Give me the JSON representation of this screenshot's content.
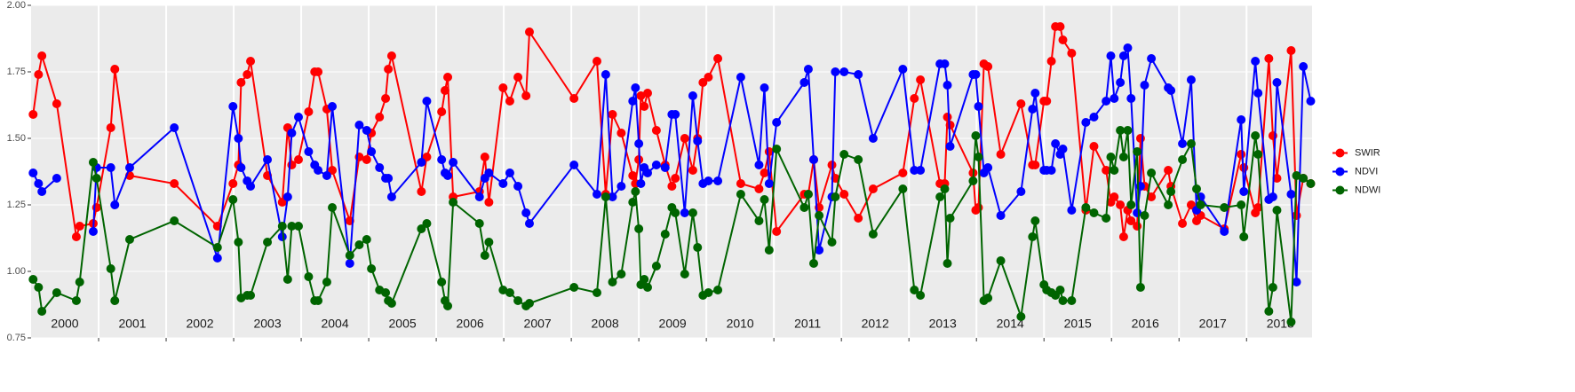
{
  "chart_data": {
    "type": "line",
    "x": [
      2000.03,
      2000.11,
      2000.16,
      2000.38,
      2000.67,
      2000.72,
      2000.92,
      2000.97,
      2001.18,
      2001.24,
      2001.46,
      2002.12,
      2002.76,
      2002.99,
      2003.07,
      2003.11,
      2003.2,
      2003.25,
      2003.5,
      2003.72,
      2003.8,
      2003.86,
      2003.96,
      2004.11,
      2004.2,
      2004.25,
      2004.38,
      2004.46,
      2004.72,
      2004.86,
      2004.97,
      2005.04,
      2005.16,
      2005.25,
      2005.29,
      2005.34,
      2005.78,
      2005.86,
      2006.08,
      2006.13,
      2006.17,
      2006.25,
      2006.64,
      2006.72,
      2006.78,
      2006.99,
      2007.09,
      2007.21,
      2007.33,
      2007.38,
      2008.04,
      2008.38,
      2008.51,
      2008.61,
      2008.74,
      2008.91,
      2008.95,
      2009.0,
      2009.03,
      2009.08,
      2009.13,
      2009.26,
      2009.39,
      2009.49,
      2009.54,
      2009.68,
      2009.8,
      2009.87,
      2009.95,
      2010.03,
      2010.17,
      2010.51,
      2010.78,
      2010.86,
      2010.93,
      2011.04,
      2011.45,
      2011.51,
      2011.59,
      2011.67,
      2011.86,
      2011.91,
      2012.04,
      2012.25,
      2012.47,
      2012.91,
      2013.08,
      2013.17,
      2013.46,
      2013.53,
      2013.57,
      2013.61,
      2013.95,
      2013.99,
      2014.03,
      2014.11,
      2014.17,
      2014.36,
      2014.66,
      2014.83,
      2014.87,
      2015.0,
      2015.04,
      2015.11,
      2015.17,
      2015.24,
      2015.28,
      2015.41,
      2015.62,
      2015.74,
      2015.92,
      2015.99,
      2016.04,
      2016.13,
      2016.18,
      2016.24,
      2016.29,
      2016.38,
      2016.43,
      2016.49,
      2016.59,
      2016.84,
      2016.88,
      2017.05,
      2017.18,
      2017.26,
      2017.32,
      2017.67,
      2017.92,
      2017.96,
      2018.13,
      2018.17,
      2018.33,
      2018.39,
      2018.45,
      2018.66,
      2018.74,
      2018.84,
      2018.95
    ],
    "series": [
      {
        "name": "SWIR",
        "color": "#ff0000",
        "values": [
          1.59,
          1.74,
          1.81,
          1.63,
          1.13,
          1.17,
          1.18,
          1.24,
          1.54,
          1.76,
          1.36,
          1.33,
          1.17,
          1.33,
          1.4,
          1.71,
          1.74,
          1.79,
          1.36,
          1.26,
          1.54,
          1.4,
          1.42,
          1.6,
          1.75,
          1.75,
          1.61,
          1.38,
          1.19,
          1.43,
          1.42,
          1.52,
          1.58,
          1.65,
          1.76,
          1.81,
          1.3,
          1.43,
          1.6,
          1.68,
          1.73,
          1.28,
          1.3,
          1.43,
          1.26,
          1.69,
          1.64,
          1.73,
          1.66,
          1.9,
          1.65,
          1.79,
          1.29,
          1.59,
          1.52,
          1.36,
          1.33,
          1.42,
          1.66,
          1.62,
          1.67,
          1.53,
          1.4,
          1.32,
          1.35,
          1.5,
          1.38,
          1.5,
          1.71,
          1.73,
          1.8,
          1.33,
          1.31,
          1.37,
          1.45,
          1.15,
          1.29,
          1.29,
          1.42,
          1.24,
          1.4,
          1.35,
          1.29,
          1.2,
          1.31,
          1.37,
          1.65,
          1.72,
          1.33,
          1.33,
          1.58,
          1.55,
          1.37,
          1.23,
          1.24,
          1.78,
          1.77,
          1.44,
          1.63,
          1.4,
          1.4,
          1.64,
          1.64,
          1.79,
          1.92,
          1.92,
          1.87,
          1.82,
          1.23,
          1.47,
          1.38,
          1.26,
          1.28,
          1.25,
          1.13,
          1.23,
          1.19,
          1.17,
          1.5,
          1.32,
          1.28,
          1.38,
          1.32,
          1.18,
          1.25,
          1.19,
          1.21,
          1.16,
          1.44,
          1.39,
          1.22,
          1.24,
          1.8,
          1.51,
          1.35,
          1.83,
          1.21,
          1.35,
          1.33
        ]
      },
      {
        "name": "NDVI",
        "color": "#0000ff",
        "values": [
          1.37,
          1.33,
          1.3,
          1.35,
          null,
          null,
          1.15,
          1.39,
          1.39,
          1.25,
          1.39,
          1.54,
          1.05,
          1.62,
          1.5,
          1.39,
          1.34,
          1.32,
          1.42,
          1.13,
          1.28,
          1.52,
          1.58,
          1.45,
          1.4,
          1.38,
          1.36,
          1.62,
          1.03,
          1.55,
          1.53,
          1.45,
          1.39,
          1.35,
          1.35,
          1.28,
          1.41,
          1.64,
          1.42,
          1.37,
          1.36,
          1.41,
          1.28,
          1.35,
          1.37,
          1.33,
          1.37,
          1.32,
          1.22,
          1.18,
          1.4,
          1.29,
          1.74,
          1.28,
          1.32,
          1.64,
          1.69,
          1.48,
          1.33,
          1.39,
          1.37,
          1.4,
          1.39,
          1.59,
          1.59,
          1.22,
          1.66,
          1.49,
          1.33,
          1.34,
          1.34,
          1.73,
          1.4,
          1.69,
          1.33,
          1.56,
          1.71,
          1.76,
          1.42,
          1.08,
          1.28,
          1.75,
          1.75,
          1.74,
          1.5,
          1.76,
          1.38,
          1.38,
          1.78,
          1.78,
          1.7,
          1.47,
          1.74,
          1.74,
          1.62,
          1.37,
          1.39,
          1.21,
          1.3,
          1.61,
          1.67,
          1.38,
          1.38,
          1.38,
          1.48,
          1.44,
          1.46,
          1.23,
          1.56,
          1.58,
          1.64,
          1.81,
          1.65,
          1.71,
          1.81,
          1.84,
          1.65,
          1.22,
          1.32,
          1.7,
          1.8,
          1.69,
          1.68,
          1.48,
          1.72,
          1.23,
          1.28,
          1.15,
          1.57,
          1.3,
          1.79,
          1.67,
          1.27,
          1.28,
          1.71,
          1.29,
          0.96,
          1.77,
          1.64
        ]
      },
      {
        "name": "NDWI",
        "color": "#006400",
        "values": [
          0.97,
          0.94,
          0.85,
          0.92,
          0.89,
          0.96,
          1.41,
          1.35,
          1.01,
          0.89,
          1.12,
          1.19,
          1.09,
          1.27,
          1.11,
          0.9,
          0.91,
          0.91,
          1.11,
          1.17,
          0.97,
          1.17,
          1.17,
          0.98,
          0.89,
          0.89,
          0.96,
          1.24,
          1.06,
          1.1,
          1.12,
          1.01,
          0.93,
          0.92,
          0.89,
          0.88,
          1.16,
          1.18,
          0.96,
          0.89,
          0.87,
          1.26,
          1.18,
          1.06,
          1.11,
          0.93,
          0.92,
          0.89,
          0.87,
          0.88,
          0.94,
          0.92,
          1.28,
          0.96,
          0.99,
          1.26,
          1.3,
          1.16,
          0.95,
          0.97,
          0.94,
          1.02,
          1.14,
          1.24,
          1.22,
          0.99,
          1.22,
          1.09,
          0.91,
          0.92,
          0.93,
          1.29,
          1.19,
          1.27,
          1.08,
          1.46,
          1.24,
          1.29,
          1.03,
          1.21,
          1.11,
          1.28,
          1.44,
          1.42,
          1.14,
          1.31,
          0.93,
          0.91,
          1.28,
          1.31,
          1.03,
          1.2,
          1.34,
          1.51,
          1.43,
          0.89,
          0.9,
          1.04,
          0.83,
          1.13,
          1.19,
          0.95,
          0.93,
          0.92,
          0.91,
          0.93,
          0.89,
          0.89,
          1.24,
          1.22,
          1.2,
          1.43,
          1.38,
          1.53,
          1.43,
          1.53,
          1.25,
          1.45,
          0.94,
          1.21,
          1.37,
          1.25,
          1.3,
          1.42,
          1.48,
          1.31,
          1.25,
          1.24,
          1.25,
          1.13,
          1.51,
          1.44,
          0.85,
          0.94,
          1.23,
          0.81,
          1.36,
          1.35,
          1.33
        ]
      }
    ],
    "xlim": [
      2000,
      2018.97
    ],
    "year_boundaries": [
      2001,
      2002,
      2003,
      2004,
      2005,
      2006,
      2007,
      2008,
      2009,
      2010,
      2011,
      2012,
      2013,
      2014,
      2015,
      2016,
      2017,
      2018
    ],
    "year_labels": [
      {
        "value": 2000.5,
        "label": "2000"
      },
      {
        "value": 2001.5,
        "label": "2001"
      },
      {
        "value": 2002.5,
        "label": "2002"
      },
      {
        "value": 2003.5,
        "label": "2003"
      },
      {
        "value": 2004.5,
        "label": "2004"
      },
      {
        "value": 2005.5,
        "label": "2005"
      },
      {
        "value": 2006.5,
        "label": "2006"
      },
      {
        "value": 2007.5,
        "label": "2007"
      },
      {
        "value": 2008.5,
        "label": "2008"
      },
      {
        "value": 2009.5,
        "label": "2009"
      },
      {
        "value": 2010.5,
        "label": "2010"
      },
      {
        "value": 2011.5,
        "label": "2011"
      },
      {
        "value": 2012.5,
        "label": "2012"
      },
      {
        "value": 2013.5,
        "label": "2013"
      },
      {
        "value": 2014.5,
        "label": "2014"
      },
      {
        "value": 2015.5,
        "label": "2015"
      },
      {
        "value": 2016.5,
        "label": "2016"
      },
      {
        "value": 2017.5,
        "label": "2017"
      },
      {
        "value": 2018.5,
        "label": "2018"
      }
    ],
    "ylim": [
      0.75,
      2.0
    ],
    "yticks": [
      {
        "value": 0.75,
        "label": "0.75"
      },
      {
        "value": 1.0,
        "label": "1.00"
      },
      1.25,
      {
        "value": 1.5,
        "label": "1.50"
      },
      1.75,
      {
        "value": 2.0,
        "label": "2.00"
      }
    ],
    "grid": true,
    "legend": "right"
  }
}
